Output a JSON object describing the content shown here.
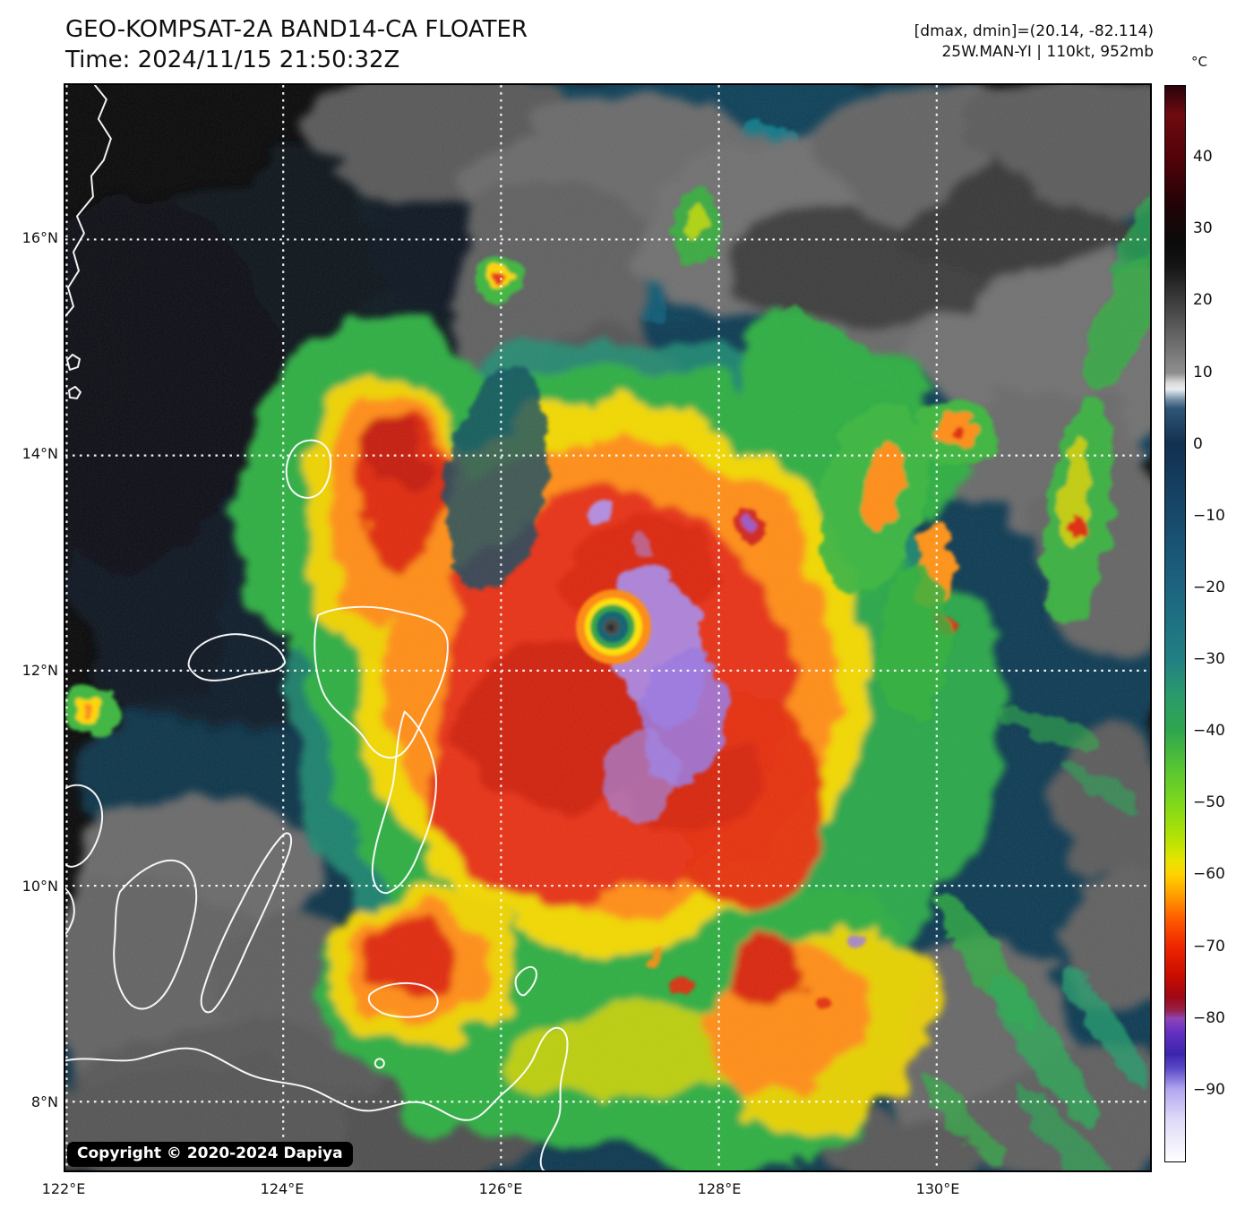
{
  "header": {
    "title": "GEO-KOMPSAT-2A BAND14-CA FLOATER",
    "time_label": "Time: 2024/11/15 21:50:32Z",
    "range_label": "[dmax, dmin]=(20.14, -82.114)",
    "storm_label": "25W.MAN-YI | 110kt, 952mb"
  },
  "map": {
    "copyright": "Copyright © 2020-2024 Dapiya",
    "x_axis": {
      "ticks": [
        "122°E",
        "124°E",
        "126°E",
        "128°E",
        "130°E"
      ]
    },
    "y_axis": {
      "ticks": [
        "16°N",
        "14°N",
        "12°N",
        "10°N",
        "8°N"
      ]
    }
  },
  "colorbar": {
    "unit": "°C",
    "tick_labels": [
      "40",
      "30",
      "20",
      "10",
      "0",
      "−10",
      "−20",
      "−30",
      "−40",
      "−50",
      "−60",
      "−70",
      "−80",
      "−90"
    ],
    "tick_values": [
      40,
      30,
      20,
      10,
      0,
      -10,
      -20,
      -30,
      -40,
      -50,
      -60,
      -70,
      -80,
      -90
    ],
    "gradient_stops": [
      [
        0,
        "#2b040a"
      ],
      [
        2.7,
        "#6e0b10"
      ],
      [
        6.7,
        "#520309"
      ],
      [
        11.3,
        "#1f0306"
      ],
      [
        14.7,
        "#0b0b0b"
      ],
      [
        16.7,
        "#141414"
      ],
      [
        26.7,
        "#8f8f8f"
      ],
      [
        27.6,
        "#d9d9d9"
      ],
      [
        28.2,
        "#e9edf1"
      ],
      [
        29.2,
        "#6f8ba0"
      ],
      [
        30,
        "#2f5576"
      ],
      [
        33.3,
        "#123050"
      ],
      [
        40,
        "#17496b"
      ],
      [
        46.7,
        "#1d6480"
      ],
      [
        53.3,
        "#218083"
      ],
      [
        56.7,
        "#2b9a6b"
      ],
      [
        60,
        "#2fa64d"
      ],
      [
        63.3,
        "#55c433"
      ],
      [
        66.7,
        "#7fd81c"
      ],
      [
        70,
        "#b5e303"
      ],
      [
        72,
        "#e6e400"
      ],
      [
        73.3,
        "#ffd300"
      ],
      [
        75.3,
        "#ff9d00"
      ],
      [
        77.3,
        "#ff5f00"
      ],
      [
        80,
        "#ef2600"
      ],
      [
        82.7,
        "#c90d00"
      ],
      [
        84.7,
        "#a00713"
      ],
      [
        86,
        "#97234f"
      ],
      [
        86.7,
        "#8e44b8"
      ],
      [
        88,
        "#6430c0"
      ],
      [
        90,
        "#3c25ae"
      ],
      [
        91.3,
        "#5847c6"
      ],
      [
        93.3,
        "#b2a7f0"
      ],
      [
        96,
        "#ded9f8"
      ],
      [
        100,
        "#ffffff"
      ]
    ]
  }
}
